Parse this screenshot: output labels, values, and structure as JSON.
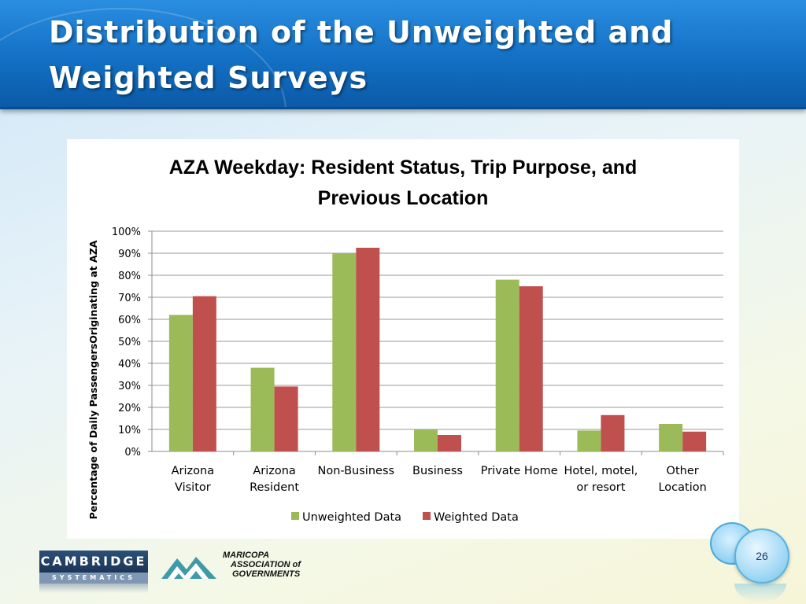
{
  "slide": {
    "title_line1": "Distribution of the Unweighted and",
    "title_line2": "Weighted Surveys",
    "page_number": "26"
  },
  "logos": {
    "cambridge": {
      "line1": "CAMBRIDGE",
      "line2": "SYSTEMATICS"
    },
    "mag": {
      "line1": "MARICOPA",
      "line2": "ASSOCIATION of",
      "line3": "GOVERNMENTS"
    }
  },
  "chart_data": {
    "type": "bar",
    "title_line1": "AZA Weekday: Resident Status, Trip Purpose, and",
    "title_line2": "Previous Location",
    "ylabel": "Percentage of Daily PassengersOriginating  at AZA",
    "xlabel": "",
    "ylim": [
      0,
      100
    ],
    "yticks": [
      "0%",
      "10%",
      "20%",
      "30%",
      "40%",
      "50%",
      "60%",
      "70%",
      "80%",
      "90%",
      "100%"
    ],
    "grid": true,
    "legend_position": "bottom",
    "categories": [
      [
        "Arizona",
        "Visitor"
      ],
      [
        "Arizona",
        "Resident"
      ],
      [
        "Non-Business"
      ],
      [
        "Business"
      ],
      [
        "Private Home"
      ],
      [
        "Hotel, motel,",
        "or resort"
      ],
      [
        "Other",
        "Location"
      ]
    ],
    "series": [
      {
        "name": "Unweighted Data",
        "color": "#9bbb59",
        "values": [
          62,
          38,
          90,
          10,
          78,
          9.5,
          12.5
        ]
      },
      {
        "name": "Weighted Data",
        "color": "#c0504d",
        "values": [
          70.5,
          29.5,
          92.5,
          7.5,
          75,
          16.5,
          9
        ]
      }
    ]
  }
}
